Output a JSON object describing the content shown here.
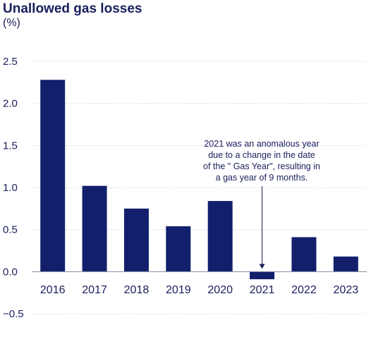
{
  "colors": {
    "bar": "#12206b",
    "text": "#1a1f5c",
    "grid": "#c7d1dc"
  },
  "chart_data": {
    "type": "bar",
    "title": "Unallowed gas losses",
    "subtitle": "(%)",
    "categories": [
      "2016",
      "2017",
      "2018",
      "2019",
      "2020",
      "2021",
      "2022",
      "2023"
    ],
    "values": [
      2.28,
      1.02,
      0.75,
      0.54,
      0.84,
      -0.09,
      0.41,
      0.18
    ],
    "ylim": [
      -0.5,
      2.5
    ],
    "yticks": [
      "2.5",
      "2.0",
      "1.5",
      "1.0",
      "0.5",
      "0.0",
      "−0.5"
    ],
    "grid": true,
    "annotation": {
      "target": "2021",
      "lines": [
        "2021 was an anomalous year",
        "due to a change in the date",
        "of the \" Gas Year\", resulting in",
        "a gas year of 9 months."
      ]
    }
  }
}
